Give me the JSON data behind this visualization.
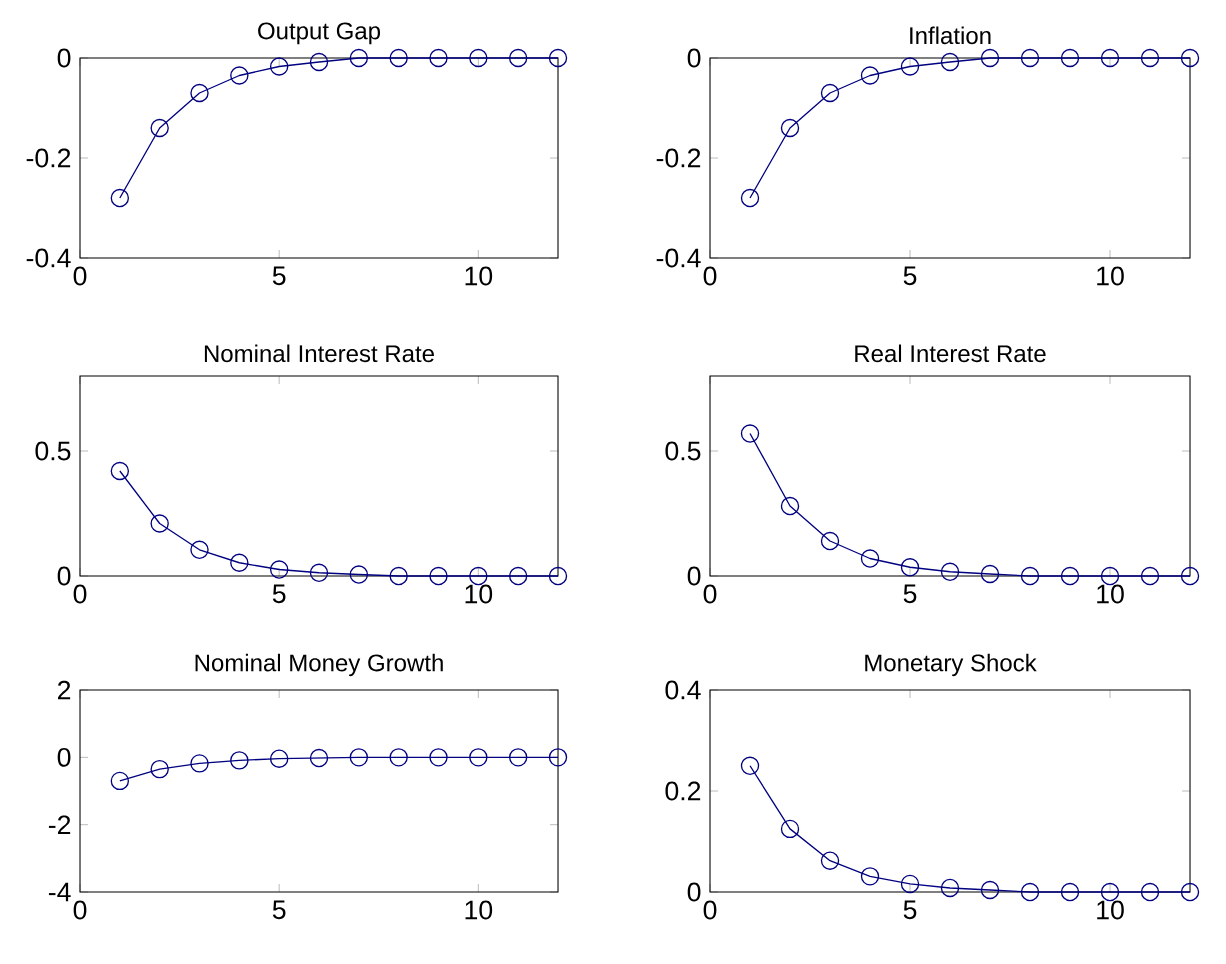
{
  "chart_data": [
    {
      "type": "line",
      "title": "Output Gap",
      "x": [
        1,
        2,
        3,
        4,
        5,
        6,
        7,
        8,
        9,
        10,
        11,
        12
      ],
      "values": [
        -0.28,
        -0.14,
        -0.07,
        -0.035,
        -0.017,
        -0.008,
        0,
        0,
        0,
        0,
        0,
        0
      ],
      "color": "#000080",
      "marker": "circle",
      "xlim": [
        0,
        12
      ],
      "xticks": [
        0,
        5,
        10
      ],
      "ylim": [
        -0.4,
        0
      ],
      "yticks": [
        -0.4,
        -0.2,
        0
      ]
    },
    {
      "type": "line",
      "title": "Inflation",
      "x": [
        1,
        2,
        3,
        4,
        5,
        6,
        7,
        8,
        9,
        10,
        11,
        12
      ],
      "values": [
        -0.28,
        -0.14,
        -0.07,
        -0.035,
        -0.017,
        -0.008,
        0,
        0,
        0,
        0,
        0,
        0
      ],
      "color": "#000080",
      "marker": "circle",
      "xlim": [
        0,
        12
      ],
      "xticks": [
        0,
        5,
        10
      ],
      "ylim": [
        -0.4,
        0
      ],
      "yticks": [
        -0.4,
        -0.2,
        0
      ]
    },
    {
      "type": "line",
      "title": "Nominal Interest Rate",
      "x": [
        1,
        2,
        3,
        4,
        5,
        6,
        7,
        8,
        9,
        10,
        11,
        12
      ],
      "values": [
        0.42,
        0.21,
        0.105,
        0.053,
        0.026,
        0.013,
        0.006,
        0,
        0,
        0,
        0,
        0
      ],
      "color": "#000080",
      "marker": "circle",
      "xlim": [
        0,
        12
      ],
      "xticks": [
        0,
        5,
        10
      ],
      "ylim": [
        0,
        0.8
      ],
      "yticks": [
        0,
        0.5
      ]
    },
    {
      "type": "line",
      "title": "Real Interest Rate",
      "x": [
        1,
        2,
        3,
        4,
        5,
        6,
        7,
        8,
        9,
        10,
        11,
        12
      ],
      "values": [
        0.57,
        0.28,
        0.14,
        0.07,
        0.035,
        0.017,
        0.008,
        0,
        0,
        0,
        0,
        0
      ],
      "color": "#000080",
      "marker": "circle",
      "xlim": [
        0,
        12
      ],
      "xticks": [
        0,
        5,
        10
      ],
      "ylim": [
        0,
        0.8
      ],
      "yticks": [
        0,
        0.5
      ]
    },
    {
      "type": "line",
      "title": "Nominal Money Growth",
      "x": [
        1,
        2,
        3,
        4,
        5,
        6,
        7,
        8,
        9,
        10,
        11,
        12
      ],
      "values": [
        -0.7,
        -0.35,
        -0.18,
        -0.09,
        -0.04,
        -0.02,
        0,
        0,
        0,
        0,
        0,
        0
      ],
      "color": "#000080",
      "marker": "circle",
      "xlim": [
        0,
        12
      ],
      "xticks": [
        0,
        5,
        10
      ],
      "ylim": [
        -4,
        2
      ],
      "yticks": [
        -4,
        -2,
        0,
        2
      ]
    },
    {
      "type": "line",
      "title": "Monetary Shock",
      "x": [
        1,
        2,
        3,
        4,
        5,
        6,
        7,
        8,
        9,
        10,
        11,
        12
      ],
      "values": [
        0.25,
        0.125,
        0.062,
        0.031,
        0.016,
        0.008,
        0.004,
        0,
        0,
        0,
        0,
        0
      ],
      "color": "#000080",
      "marker": "circle",
      "xlim": [
        0,
        12
      ],
      "xticks": [
        0,
        5,
        10
      ],
      "ylim": [
        0,
        0.4
      ],
      "yticks": [
        0,
        0.2,
        0.4
      ]
    }
  ]
}
